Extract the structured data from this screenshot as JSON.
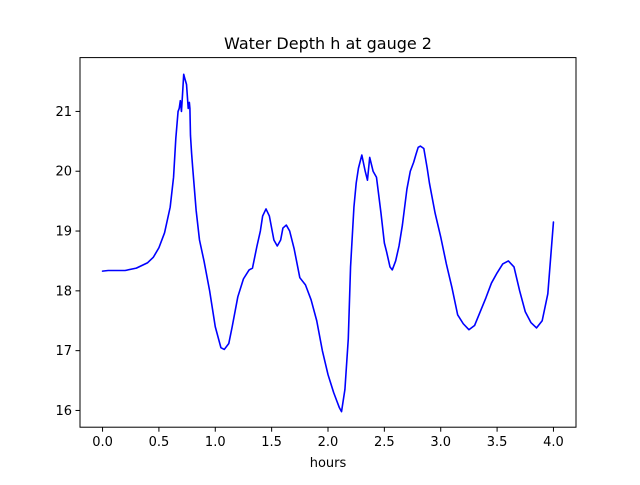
{
  "chart_data": {
    "type": "line",
    "title": "Water Depth h at gauge 2",
    "xlabel": "hours",
    "ylabel": "",
    "xlim": [
      -0.2,
      4.2
    ],
    "ylim": [
      15.72,
      21.9
    ],
    "grid": false,
    "x_ticks": [
      0.0,
      0.5,
      1.0,
      1.5,
      2.0,
      2.5,
      3.0,
      3.5,
      4.0
    ],
    "x_tick_labels": [
      "0.0",
      "0.5",
      "1.0",
      "1.5",
      "2.0",
      "2.5",
      "3.0",
      "3.5",
      "4.0"
    ],
    "y_ticks": [
      16,
      17,
      18,
      19,
      20,
      21
    ],
    "y_tick_labels": [
      "16",
      "17",
      "18",
      "19",
      "20",
      "21"
    ],
    "series": [
      {
        "color": "#0000ff",
        "x": [
          0.0,
          0.05,
          0.1,
          0.2,
          0.3,
          0.4,
          0.45,
          0.5,
          0.55,
          0.6,
          0.63,
          0.65,
          0.67,
          0.68,
          0.69,
          0.7,
          0.71,
          0.72,
          0.73,
          0.745,
          0.76,
          0.77,
          0.775,
          0.78,
          0.79,
          0.8,
          0.83,
          0.86,
          0.9,
          0.95,
          1.0,
          1.05,
          1.08,
          1.12,
          1.15,
          1.2,
          1.25,
          1.3,
          1.33,
          1.37,
          1.4,
          1.42,
          1.45,
          1.48,
          1.52,
          1.55,
          1.58,
          1.6,
          1.63,
          1.66,
          1.7,
          1.75,
          1.8,
          1.85,
          1.9,
          1.95,
          2.0,
          2.05,
          2.08,
          2.1,
          2.12,
          2.15,
          2.18,
          2.2,
          2.23,
          2.25,
          2.27,
          2.3,
          2.33,
          2.35,
          2.37,
          2.4,
          2.43,
          2.45,
          2.47,
          2.5,
          2.52,
          2.55,
          2.57,
          2.6,
          2.63,
          2.66,
          2.7,
          2.73,
          2.76,
          2.78,
          2.8,
          2.82,
          2.85,
          2.88,
          2.9,
          2.95,
          3.0,
          3.05,
          3.1,
          3.15,
          3.2,
          3.25,
          3.3,
          3.35,
          3.4,
          3.45,
          3.5,
          3.55,
          3.6,
          3.65,
          3.7,
          3.75,
          3.8,
          3.85,
          3.9,
          3.95,
          4.0
        ],
        "y": [
          18.33,
          18.34,
          18.34,
          18.34,
          18.38,
          18.47,
          18.56,
          18.72,
          18.97,
          19.4,
          19.9,
          20.55,
          21.0,
          21.05,
          21.18,
          21.0,
          21.3,
          21.62,
          21.55,
          21.45,
          21.05,
          21.15,
          21.05,
          20.6,
          20.3,
          20.05,
          19.35,
          18.85,
          18.5,
          18.0,
          17.4,
          17.05,
          17.02,
          17.12,
          17.4,
          17.9,
          18.2,
          18.35,
          18.38,
          18.75,
          19.0,
          19.25,
          19.37,
          19.25,
          18.85,
          18.75,
          18.85,
          19.05,
          19.1,
          19.0,
          18.7,
          18.22,
          18.1,
          17.85,
          17.5,
          17.0,
          16.6,
          16.3,
          16.15,
          16.05,
          15.98,
          16.35,
          17.2,
          18.4,
          19.4,
          19.8,
          20.05,
          20.27,
          20.0,
          19.85,
          20.23,
          20.0,
          19.9,
          19.6,
          19.3,
          18.8,
          18.65,
          18.4,
          18.35,
          18.5,
          18.75,
          19.1,
          19.7,
          20.0,
          20.15,
          20.28,
          20.4,
          20.42,
          20.38,
          20.05,
          19.8,
          19.3,
          18.9,
          18.45,
          18.05,
          17.6,
          17.45,
          17.35,
          17.42,
          17.65,
          17.88,
          18.13,
          18.3,
          18.45,
          18.5,
          18.4,
          18.0,
          17.65,
          17.47,
          17.38,
          17.5,
          17.95,
          19.15
        ]
      }
    ]
  }
}
